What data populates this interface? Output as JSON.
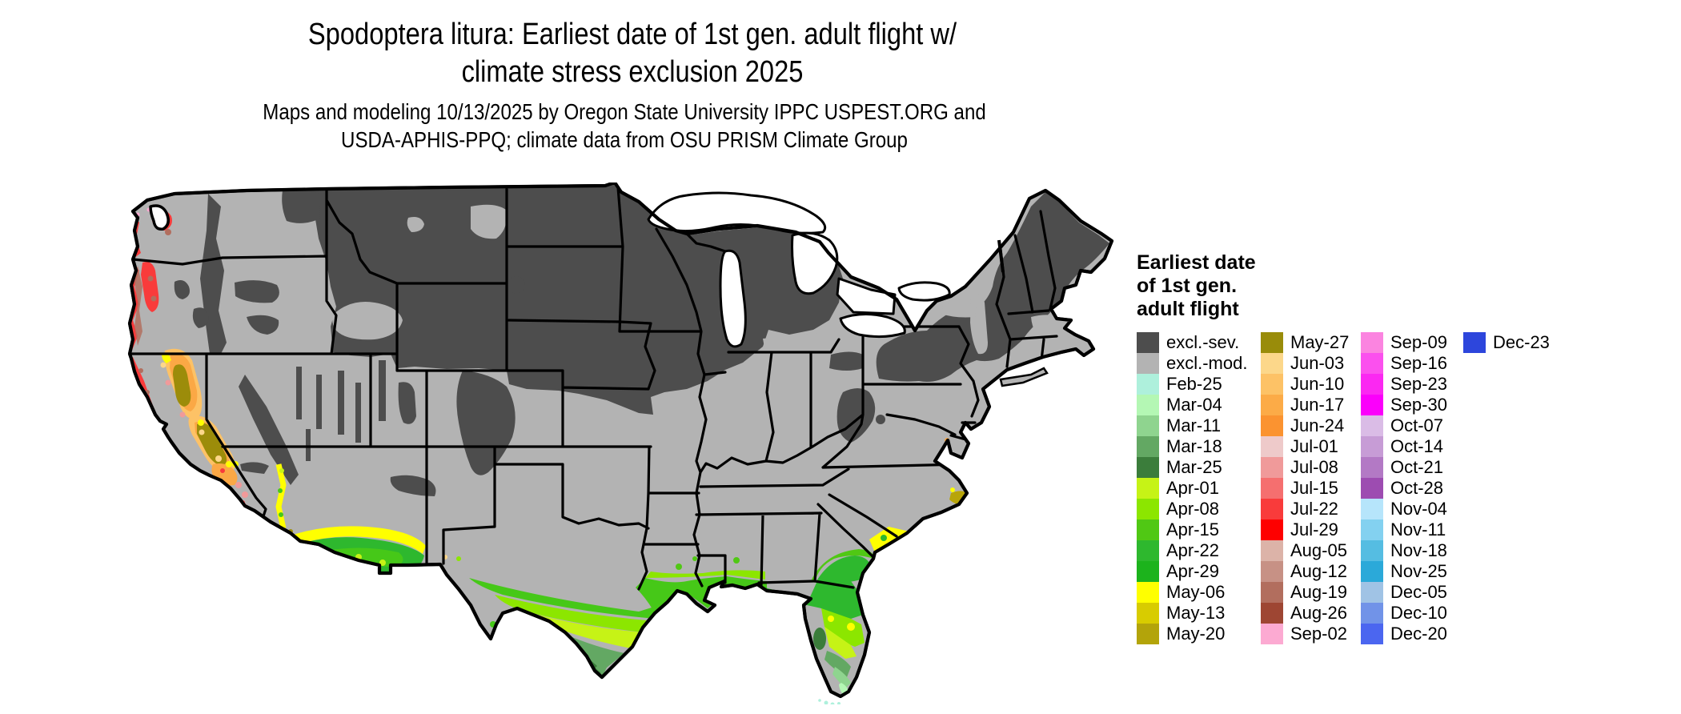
{
  "title": {
    "line1": "Spodoptera litura: Earliest date of 1st gen. adult flight w/",
    "line2": "climate stress exclusion 2025"
  },
  "subtitle": {
    "line1": "Maps and modeling 10/13/2025 by Oregon State University IPPC USPEST.ORG and",
    "line2": "USDA-APHIS-PPQ; climate data from OSU PRISM Climate Group"
  },
  "legend": {
    "title_lines": [
      "Earliest date",
      "of 1st gen.",
      "adult flight"
    ],
    "columns": [
      [
        {
          "label": "excl.-sev.",
          "color": "#4d4d4d"
        },
        {
          "label": "excl.-mod.",
          "color": "#b3b3b3"
        },
        {
          "label": "Feb-25",
          "color": "#aef0dc"
        },
        {
          "label": "Mar-04",
          "color": "#b4f7b4"
        },
        {
          "label": "Mar-11",
          "color": "#8fd48f"
        },
        {
          "label": "Mar-18",
          "color": "#63a863"
        },
        {
          "label": "Mar-25",
          "color": "#3b7d3b"
        },
        {
          "label": "Apr-01",
          "color": "#c6f316"
        },
        {
          "label": "Apr-08",
          "color": "#8ce600"
        },
        {
          "label": "Apr-15",
          "color": "#50c814"
        },
        {
          "label": "Apr-22",
          "color": "#2eb82e"
        },
        {
          "label": "Apr-29",
          "color": "#1cb31c"
        },
        {
          "label": "May-06",
          "color": "#ffff00"
        },
        {
          "label": "May-13",
          "color": "#d8cc00"
        },
        {
          "label": "May-20",
          "color": "#b3a40a"
        }
      ],
      [
        {
          "label": "May-27",
          "color": "#998c0a"
        },
        {
          "label": "Jun-03",
          "color": "#fcd78a"
        },
        {
          "label": "Jun-10",
          "color": "#fdc266"
        },
        {
          "label": "Jun-17",
          "color": "#fcab47"
        },
        {
          "label": "Jun-24",
          "color": "#fb9330"
        },
        {
          "label": "Jul-01",
          "color": "#eecaca"
        },
        {
          "label": "Jul-08",
          "color": "#f09a9a"
        },
        {
          "label": "Jul-15",
          "color": "#f56f6f"
        },
        {
          "label": "Jul-22",
          "color": "#f93b3b"
        },
        {
          "label": "Jul-29",
          "color": "#fe0000"
        },
        {
          "label": "Aug-05",
          "color": "#dcb3a8"
        },
        {
          "label": "Aug-12",
          "color": "#c79185"
        },
        {
          "label": "Aug-19",
          "color": "#b26e5e"
        },
        {
          "label": "Aug-26",
          "color": "#9e4633"
        },
        {
          "label": "Sep-02",
          "color": "#fcaad2"
        }
      ],
      [
        {
          "label": "Sep-09",
          "color": "#fb84e0"
        },
        {
          "label": "Sep-16",
          "color": "#fb50ee"
        },
        {
          "label": "Sep-23",
          "color": "#fb28f2"
        },
        {
          "label": "Sep-30",
          "color": "#fb00fb"
        },
        {
          "label": "Oct-07",
          "color": "#dabce6"
        },
        {
          "label": "Oct-14",
          "color": "#c79cd6"
        },
        {
          "label": "Oct-21",
          "color": "#b379c5"
        },
        {
          "label": "Oct-28",
          "color": "#9d4cb1"
        },
        {
          "label": "Nov-04",
          "color": "#b6e5fb"
        },
        {
          "label": "Nov-11",
          "color": "#83d1f0"
        },
        {
          "label": "Nov-18",
          "color": "#55bde2"
        },
        {
          "label": "Nov-25",
          "color": "#2ba9d9"
        },
        {
          "label": "Dec-05",
          "color": "#a0c3e5"
        },
        {
          "label": "Dec-10",
          "color": "#7193e8"
        },
        {
          "label": "Dec-20",
          "color": "#4b66f0"
        }
      ],
      [
        {
          "label": "Dec-23",
          "color": "#2d46dc"
        }
      ]
    ]
  },
  "map": {
    "region": "Continental United States",
    "colors": {
      "excluded_severe": "#4d4d4d",
      "excluded_moderate": "#b3b3b3",
      "water_and_background": "#ffffff",
      "state_borders": "#000000"
    }
  }
}
